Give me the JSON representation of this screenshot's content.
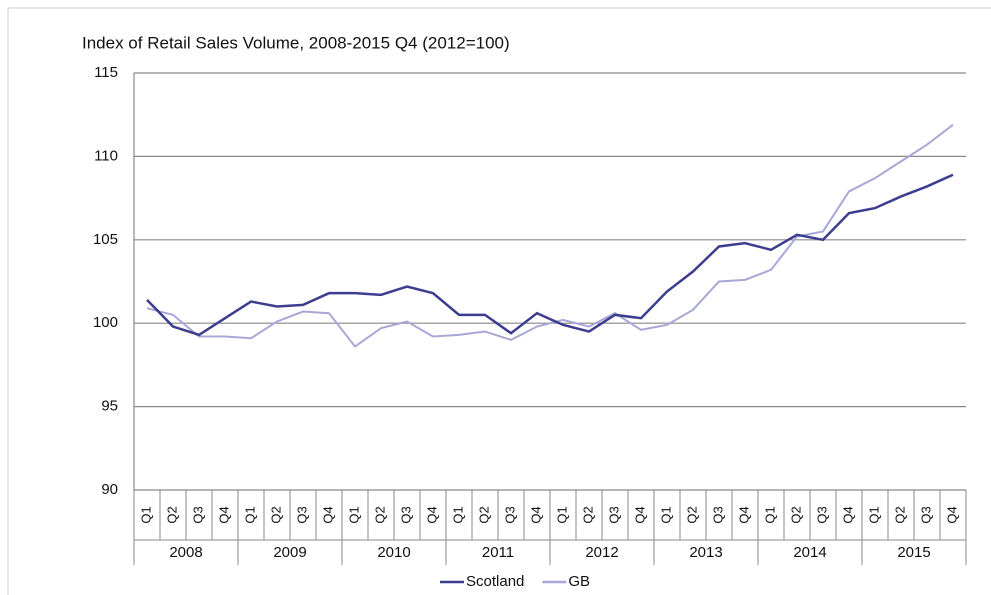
{
  "chart_data": {
    "type": "line",
    "title": "Index of Retail Sales Volume, 2008-2015 Q4 (2012=100)",
    "categories": [
      "Q1",
      "Q2",
      "Q3",
      "Q4",
      "Q1",
      "Q2",
      "Q3",
      "Q4",
      "Q1",
      "Q2",
      "Q3",
      "Q4",
      "Q1",
      "Q2",
      "Q3",
      "Q4",
      "Q1",
      "Q2",
      "Q3",
      "Q4",
      "Q1",
      "Q2",
      "Q3",
      "Q4",
      "Q1",
      "Q2",
      "Q3",
      "Q4",
      "Q1",
      "Q2",
      "Q3",
      "Q4"
    ],
    "years": [
      "2008",
      "2009",
      "2010",
      "2011",
      "2012",
      "2013",
      "2014",
      "2015"
    ],
    "series": [
      {
        "name": "Scotland",
        "color": "#3d3d8f",
        "values": [
          101.4,
          99.8,
          99.3,
          100.3,
          101.3,
          101.0,
          101.1,
          101.8,
          101.8,
          101.7,
          102.2,
          101.8,
          100.5,
          100.5,
          99.4,
          100.6,
          99.9,
          99.5,
          100.5,
          100.3,
          101.9,
          103.1,
          104.6,
          104.8,
          104.4,
          105.3,
          105.0,
          106.6,
          106.9,
          107.6,
          108.2,
          108.9
        ]
      },
      {
        "name": "GB",
        "color": "#a8a8d8",
        "values": [
          100.9,
          100.5,
          99.2,
          99.2,
          99.1,
          100.1,
          100.7,
          100.6,
          98.6,
          99.7,
          100.1,
          99.2,
          99.3,
          99.5,
          99.0,
          99.8,
          100.2,
          99.8,
          100.6,
          99.6,
          99.9,
          100.8,
          102.5,
          102.6,
          103.2,
          105.2,
          105.5,
          107.9,
          108.7,
          109.7,
          110.7,
          111.9
        ]
      }
    ],
    "ylim": [
      90,
      115
    ],
    "yticks": [
      90,
      95,
      100,
      105,
      110,
      115
    ],
    "grid": true,
    "legend": "bottom"
  }
}
